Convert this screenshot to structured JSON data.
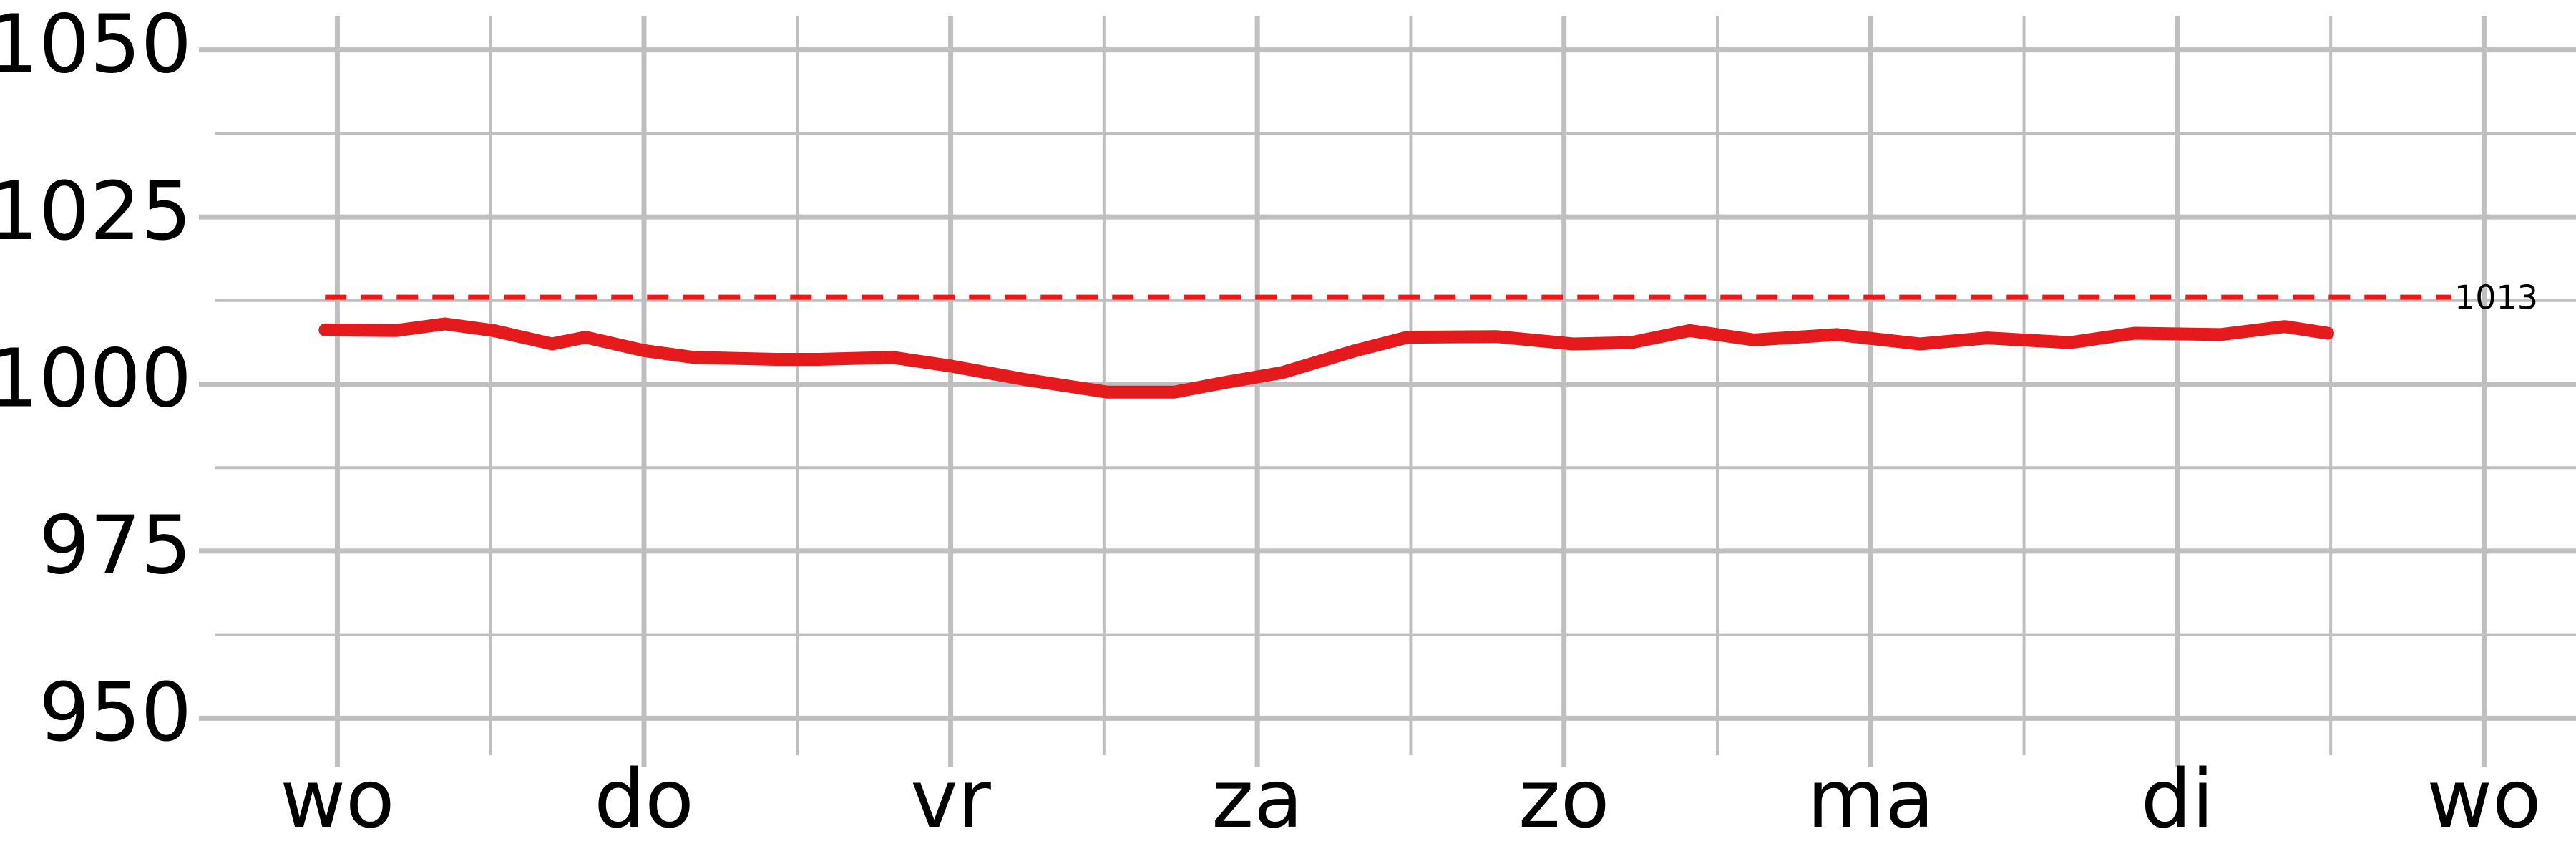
{
  "chart_data": {
    "type": "line",
    "x": [
      -0.04,
      0.19,
      0.35,
      0.51,
      0.7,
      0.81,
      1.0,
      1.16,
      1.43,
      1.57,
      1.81,
      2.0,
      2.24,
      2.51,
      2.73,
      2.89,
      3.08,
      3.32,
      3.49,
      3.78,
      4.03,
      4.22,
      4.41,
      4.62,
      4.89,
      5.16,
      5.38,
      5.65,
      5.86,
      6.14,
      6.35,
      6.49
    ],
    "values": [
      1008.1,
      1008,
      1009,
      1008,
      1006,
      1007,
      1005,
      1004,
      1003.7,
      1003.7,
      1004,
      1002.7,
      1000.7,
      998.8,
      998.8,
      1000.2,
      1001.7,
      1005,
      1007,
      1007.1,
      1006,
      1006.2,
      1008,
      1006.6,
      1007.4,
      1006,
      1006.9,
      1006.2,
      1007.6,
      1007.4,
      1008.6,
      1007.6
    ],
    "color": "#e41a1c",
    "xlim": [
      -0.4,
      7.3
    ],
    "ylim": [
      945,
      1055
    ],
    "xticks": [
      {
        "value": 0,
        "label": "wo"
      },
      {
        "value": 1,
        "label": "do"
      },
      {
        "value": 2,
        "label": "vr"
      },
      {
        "value": 3,
        "label": "za"
      },
      {
        "value": 4,
        "label": "zo"
      },
      {
        "value": 5,
        "label": "ma"
      },
      {
        "value": 6,
        "label": "di"
      },
      {
        "value": 7,
        "label": "wo"
      }
    ],
    "yticks": [
      950,
      975,
      1000,
      1025,
      1050
    ],
    "xminorticks": [
      0.5,
      1.5,
      2.5,
      3.5,
      4.5,
      5.5,
      6.5
    ],
    "yminorticks": [
      962.5,
      987.5,
      1012.5,
      1037.5
    ],
    "grid": true,
    "reference_line": {
      "value": 1013,
      "color": "#e41a1c"
    }
  }
}
